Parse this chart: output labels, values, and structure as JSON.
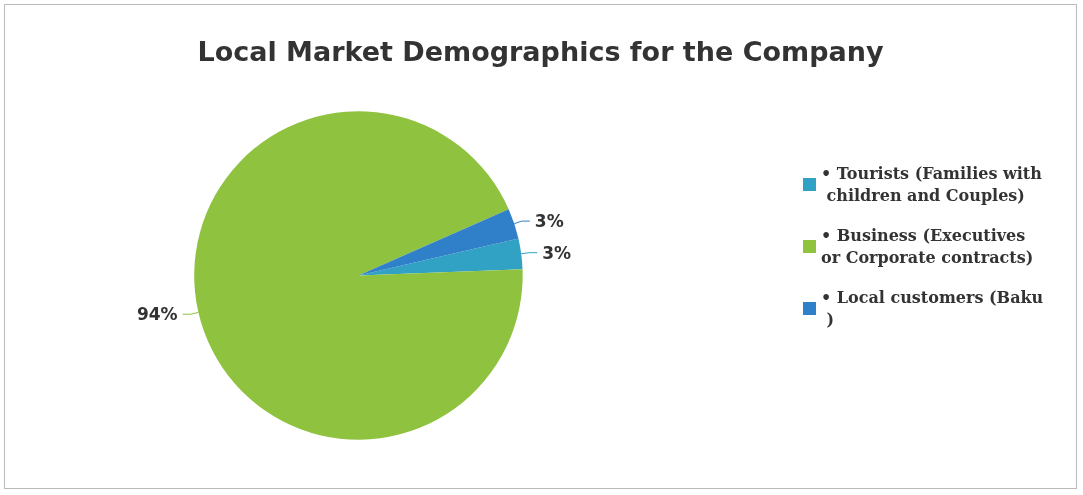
{
  "chart_data": {
    "type": "pie",
    "title": "Local Market Demographics for the Company",
    "categories": [
      "• Tourists (Families with children and Couples)",
      "• Business (Executives or Corporate contracts)",
      "• Local customers (Baku )"
    ],
    "values": [
      3,
      94,
      3
    ],
    "colors": [
      "#31a2c4",
      "#8fc23f",
      "#2f7fc9"
    ],
    "value_labels": [
      "3%",
      "94%",
      "3%"
    ],
    "legend": "right"
  }
}
